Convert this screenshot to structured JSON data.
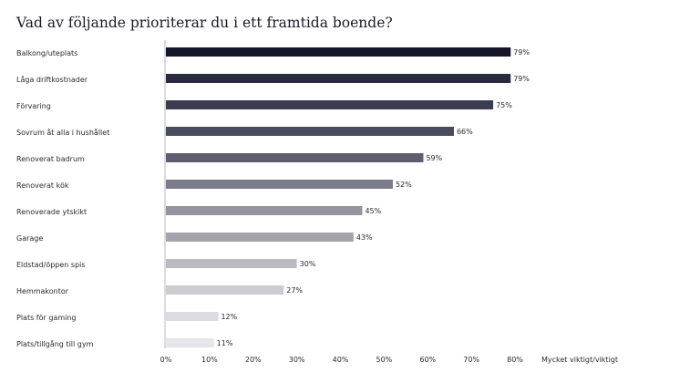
{
  "chart_data": {
    "type": "bar",
    "orientation": "horizontal",
    "title": "Vad av följande prioriterar du i ett framtida boende?",
    "xlabel": "Mycket viktigt/viktigt",
    "xlim": [
      0,
      80
    ],
    "xticks": [
      0,
      10,
      20,
      30,
      40,
      50,
      60,
      70,
      80
    ],
    "tick_suffix": "%",
    "grid": false,
    "categories": [
      "Balkong/uteplats",
      "Låga driftkostnader",
      "Förvaring",
      "Sovrum åt alla i hushållet",
      "Renoverat badrum",
      "Renoverat kök",
      "Renoverade ytskikt",
      "Garage",
      "Eldstad/öppen spis",
      "Hemmakontor",
      "Plats för gaming",
      "Plats/tillgång till gym"
    ],
    "values": [
      79,
      79,
      75,
      66,
      59,
      52,
      45,
      43,
      30,
      27,
      12,
      11
    ],
    "value_labels": [
      "79%",
      "79%",
      "75%",
      "66%",
      "59%",
      "52%",
      "45%",
      "43%",
      "30%",
      "27%",
      "12%",
      "11%"
    ],
    "colors": [
      "#16162a",
      "#2a2a40",
      "#3b3b52",
      "#4b4b60",
      "#5e5e70",
      "#7a7a88",
      "#94949e",
      "#a4a4ac",
      "#babac0",
      "#cbcbd0",
      "#dcdce0",
      "#e6e6ea"
    ],
    "axis_color": "#b8b8bc"
  }
}
